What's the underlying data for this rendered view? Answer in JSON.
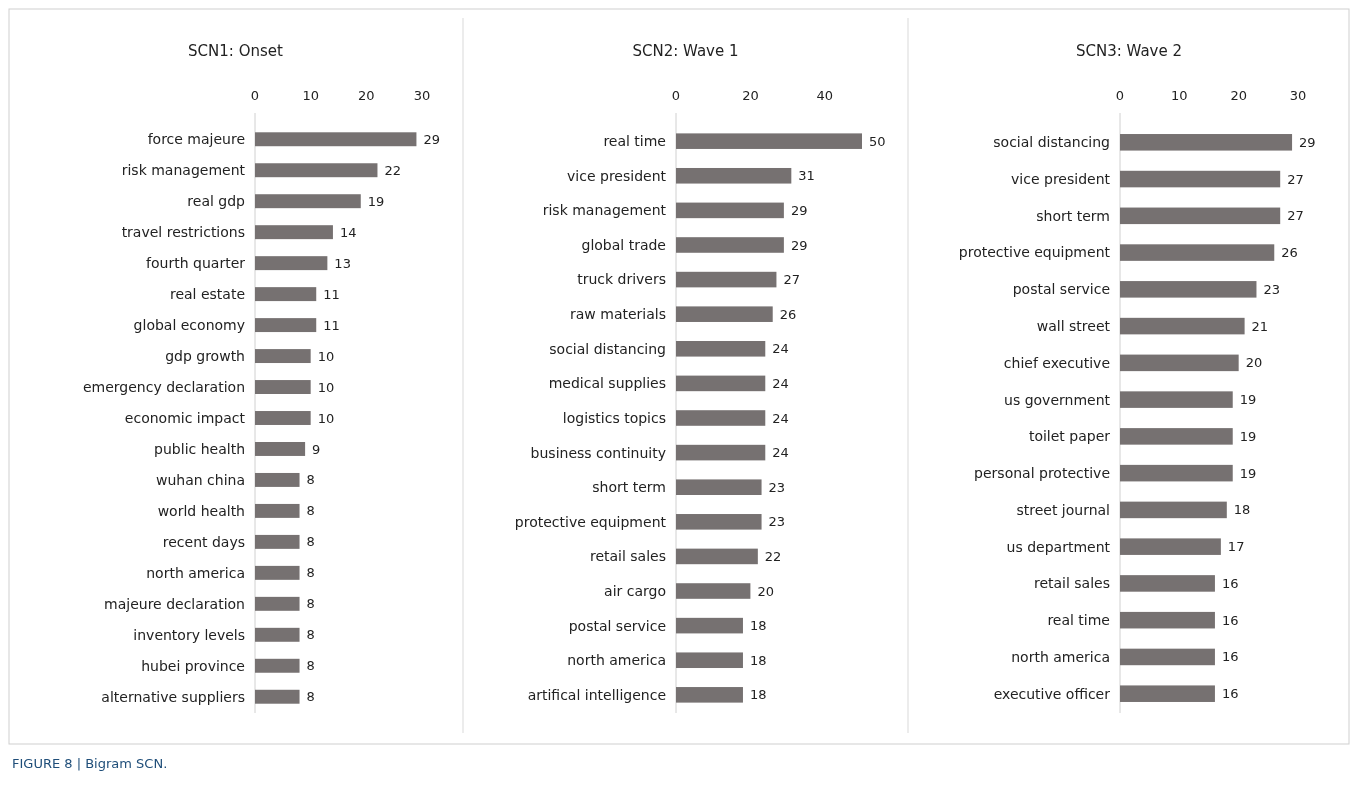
{
  "chart_data": [
    {
      "type": "bar",
      "orientation": "horizontal",
      "title": "SCN1: Onset",
      "categories": [
        "force majeure",
        "risk management",
        "real gdp",
        "travel restrictions",
        "fourth quarter",
        "real estate",
        "global economy",
        "gdp growth",
        "emergency declaration",
        "economic impact",
        "public health",
        "wuhan china",
        "world health",
        "recent days",
        "north america",
        "majeure declaration",
        "inventory levels",
        "hubei province",
        "alternative suppliers"
      ],
      "values": [
        29,
        22,
        19,
        14,
        13,
        11,
        11,
        10,
        10,
        10,
        9,
        8,
        8,
        8,
        8,
        8,
        8,
        8,
        8
      ],
      "color": "#767171",
      "xlim": [
        0,
        30
      ],
      "xticks": [
        0,
        10,
        20,
        30
      ],
      "data_labels": true,
      "annotations": [
        "FIGURE 8 | Bigram SCN."
      ]
    },
    {
      "type": "bar",
      "orientation": "horizontal",
      "title": "SCN2: Wave 1",
      "categories": [
        "real time",
        "vice president",
        "risk management",
        "global trade",
        "truck drivers",
        "raw materials",
        "social distancing",
        "medical supplies",
        "logistics topics",
        "business continuity",
        "short term",
        "protective equipment",
        "retail sales",
        "air cargo",
        "postal service",
        "north america",
        "artifical intelligence"
      ],
      "values": [
        50,
        31,
        29,
        29,
        27,
        26,
        24,
        24,
        24,
        24,
        23,
        23,
        22,
        20,
        18,
        18,
        18
      ],
      "color": "#767171",
      "xlim": [
        0,
        50
      ],
      "xticks": [
        0,
        20,
        40
      ],
      "data_labels": true
    },
    {
      "type": "bar",
      "orientation": "horizontal",
      "title": "SCN3: Wave 2",
      "categories": [
        "social distancing",
        "vice president",
        "short term",
        "protective equipment",
        "postal service",
        "wall street",
        "chief executive",
        "us government",
        "toilet paper",
        "personal protective",
        "street journal",
        "us department",
        "retail sales",
        "real time",
        "north america",
        "executive officer"
      ],
      "values": [
        29,
        27,
        27,
        26,
        23,
        21,
        20,
        19,
        19,
        19,
        18,
        17,
        16,
        16,
        16,
        16
      ],
      "color": "#767171",
      "xlim": [
        0,
        30
      ],
      "xticks": [
        0,
        10,
        20,
        30
      ],
      "data_labels": true
    }
  ]
}
